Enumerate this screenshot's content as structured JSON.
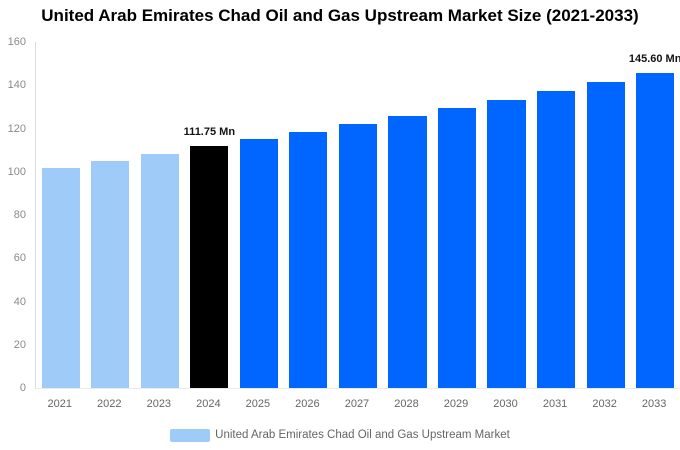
{
  "title": "United Arab Emirates Chad Oil and Gas Upstream Market Size (2021-2033)",
  "chart_data": {
    "type": "bar",
    "title": "United Arab Emirates Chad Oil and Gas Upstream Market Size (2021-2033)",
    "categories": [
      "2021",
      "2022",
      "2023",
      "2024",
      "2025",
      "2026",
      "2027",
      "2028",
      "2029",
      "2030",
      "2031",
      "2032",
      "2033"
    ],
    "values": [
      101.9,
      105.0,
      108.2,
      111.75,
      115.1,
      118.6,
      122.1,
      125.8,
      129.5,
      133.4,
      137.4,
      141.5,
      145.6
    ],
    "unit": "Mn",
    "xlabel": "",
    "ylabel": "",
    "ylim": [
      0,
      160
    ],
    "yticks": [
      0,
      20,
      40,
      60,
      80,
      100,
      120,
      140,
      160
    ],
    "grid": false,
    "bar_colors": [
      "#9FCBF9",
      "#9FCBF9",
      "#9FCBF9",
      "#000000",
      "#0066FF",
      "#0066FF",
      "#0066FF",
      "#0066FF",
      "#0066FF",
      "#0066FF",
      "#0066FF",
      "#0066FF",
      "#0066FF"
    ],
    "data_labels": {
      "3": "111.75 Mn",
      "12": "145.60 Mn"
    },
    "legend": {
      "label": "United Arab Emirates Chad Oil and Gas Upstream Market",
      "swatch_color": "#9FCBF9",
      "position": "bottom"
    },
    "colors": {
      "series_light": "#9FCBF9",
      "series_main": "#0066FF",
      "highlight": "#000000",
      "axis_text": "#8a8a8a",
      "category_text": "#666666"
    }
  }
}
